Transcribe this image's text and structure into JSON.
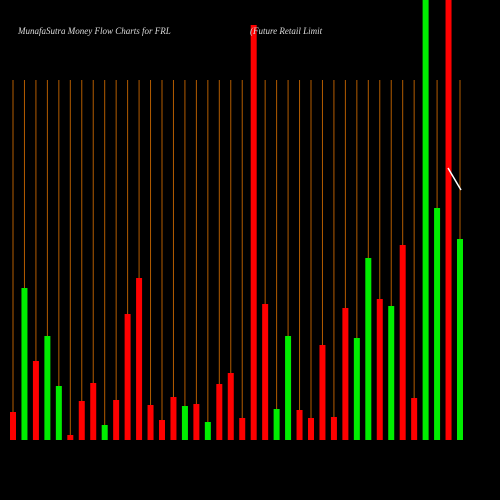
{
  "chart_data": {
    "type": "bar",
    "title": "MunafaSutra  Money Flow  Charts for FRL",
    "subtitle": "(Future    Retail Limit",
    "values": [
      28,
      152,
      79,
      104,
      54,
      5,
      39,
      57,
      15,
      40,
      126,
      162,
      35,
      20,
      43,
      34,
      36,
      18,
      56,
      67,
      22,
      415,
      136,
      31,
      104,
      30,
      22,
      95,
      23,
      132,
      102,
      182,
      141,
      134,
      195,
      42,
      460,
      232,
      460,
      201
    ],
    "colors": [
      "#ff0000",
      "#00ee00",
      "#ff0000",
      "#00ee00",
      "#00ee00",
      "#ff0000",
      "#ff0000",
      "#ff0000",
      "#00ee00",
      "#ff0000",
      "#ff0000",
      "#ff0000",
      "#ff0000",
      "#ff0000",
      "#ff0000",
      "#00ee00",
      "#ff0000",
      "#00ee00",
      "#ff0000",
      "#ff0000",
      "#ff0000",
      "#ff0000",
      "#ff0000",
      "#00ee00",
      "#00ee00",
      "#ff0000",
      "#ff0000",
      "#ff0000",
      "#ff0000",
      "#ff0000",
      "#00ee00",
      "#00ee00",
      "#ff0000",
      "#00ee00",
      "#ff0000",
      "#ff0000",
      "#00ee00",
      "#00ee00",
      "#ff0000",
      "#00ee00"
    ],
    "ylim": [
      0,
      440
    ]
  }
}
